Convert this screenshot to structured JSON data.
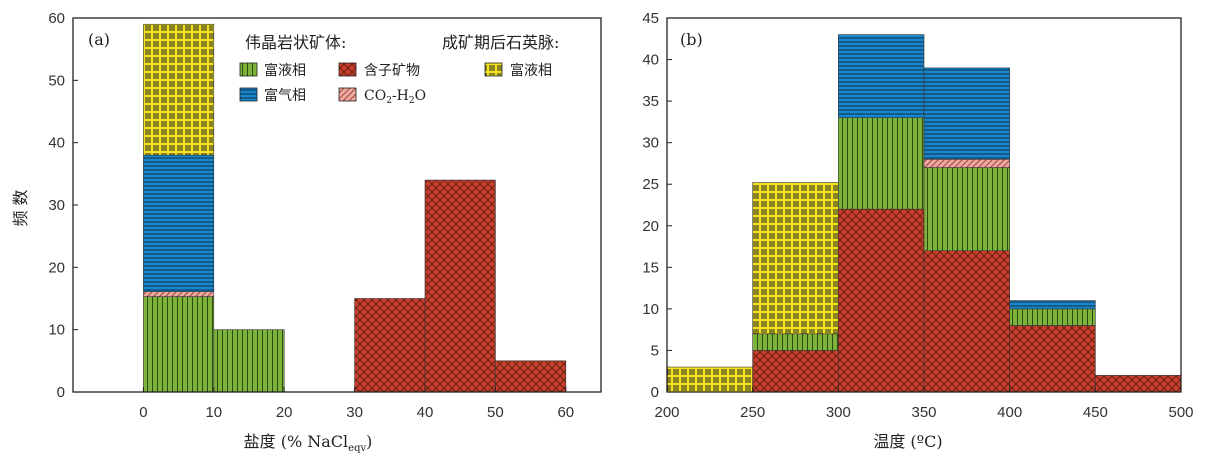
{
  "colors": {
    "green": "#7db33b",
    "blue": "#1a87cc",
    "pink": "#f0a8a0",
    "red": "#c8402c",
    "yellow": "#f4e31e"
  },
  "chart_data": [
    {
      "id": "a",
      "type": "bar",
      "stacked": true,
      "panel_label": "(a)",
      "xlabel": "盐度 (% NaCl",
      "xlabel_sub": "eqv",
      "xlabel_end": ")",
      "ylabel": "频 数",
      "xlim": [
        -10,
        65
      ],
      "ylim": [
        0,
        60
      ],
      "xticks": [
        0,
        10,
        20,
        30,
        40,
        50,
        60
      ],
      "yticks": [
        0,
        10,
        20,
        30,
        40,
        50,
        60
      ],
      "legend": {
        "group1_title": "伟晶岩状矿体:",
        "group2_title": "成矿期后石英脉:",
        "items": [
          {
            "key": "green",
            "label": "富液相"
          },
          {
            "key": "red",
            "label": "含子矿物"
          },
          {
            "key": "yellow",
            "label": "富液相"
          },
          {
            "key": "blue",
            "label": "富气相"
          },
          {
            "key": "pink",
            "label_main": "CO",
            "label_sub": "2",
            "label_rest": "-H",
            "label_sub2": "2",
            "label_end": "O"
          }
        ]
      },
      "bins": [
        {
          "x0": 0,
          "x1": 10,
          "segments": [
            {
              "key": "green",
              "value": 15.3
            },
            {
              "key": "pink",
              "value": 0.8
            },
            {
              "key": "blue",
              "value": 21.9
            },
            {
              "key": "yellow",
              "value": 21.0
            }
          ]
        },
        {
          "x0": 10,
          "x1": 20,
          "segments": [
            {
              "key": "green",
              "value": 10
            }
          ]
        },
        {
          "x0": 30,
          "x1": 40,
          "segments": [
            {
              "key": "red",
              "value": 15
            }
          ]
        },
        {
          "x0": 40,
          "x1": 50,
          "segments": [
            {
              "key": "red",
              "value": 34
            }
          ]
        },
        {
          "x0": 50,
          "x1": 60,
          "segments": [
            {
              "key": "red",
              "value": 5
            }
          ]
        }
      ]
    },
    {
      "id": "b",
      "type": "bar",
      "stacked": true,
      "panel_label": "(b)",
      "xlabel": "温度 (ºC)",
      "xlim": [
        200,
        500
      ],
      "ylim": [
        0,
        45
      ],
      "xticks": [
        200,
        250,
        300,
        350,
        400,
        450,
        500
      ],
      "yticks": [
        0,
        5,
        10,
        15,
        20,
        25,
        30,
        35,
        40,
        45
      ],
      "bins": [
        {
          "x0": 200,
          "x1": 250,
          "segments": [
            {
              "key": "yellow",
              "value": 3
            }
          ]
        },
        {
          "x0": 250,
          "x1": 300,
          "segments": [
            {
              "key": "red",
              "value": 5
            },
            {
              "key": "green",
              "value": 2
            },
            {
              "key": "yellow",
              "value": 18.2
            }
          ]
        },
        {
          "x0": 300,
          "x1": 350,
          "segments": [
            {
              "key": "red",
              "value": 22
            },
            {
              "key": "green",
              "value": 11
            },
            {
              "key": "blue",
              "value": 10
            }
          ]
        },
        {
          "x0": 350,
          "x1": 400,
          "segments": [
            {
              "key": "red",
              "value": 17
            },
            {
              "key": "green",
              "value": 10
            },
            {
              "key": "pink",
              "value": 1
            },
            {
              "key": "blue",
              "value": 11
            }
          ]
        },
        {
          "x0": 400,
          "x1": 450,
          "segments": [
            {
              "key": "red",
              "value": 8
            },
            {
              "key": "green",
              "value": 2
            },
            {
              "key": "blue",
              "value": 1
            }
          ]
        },
        {
          "x0": 450,
          "x1": 500,
          "segments": [
            {
              "key": "red",
              "value": 2
            }
          ]
        }
      ]
    }
  ]
}
